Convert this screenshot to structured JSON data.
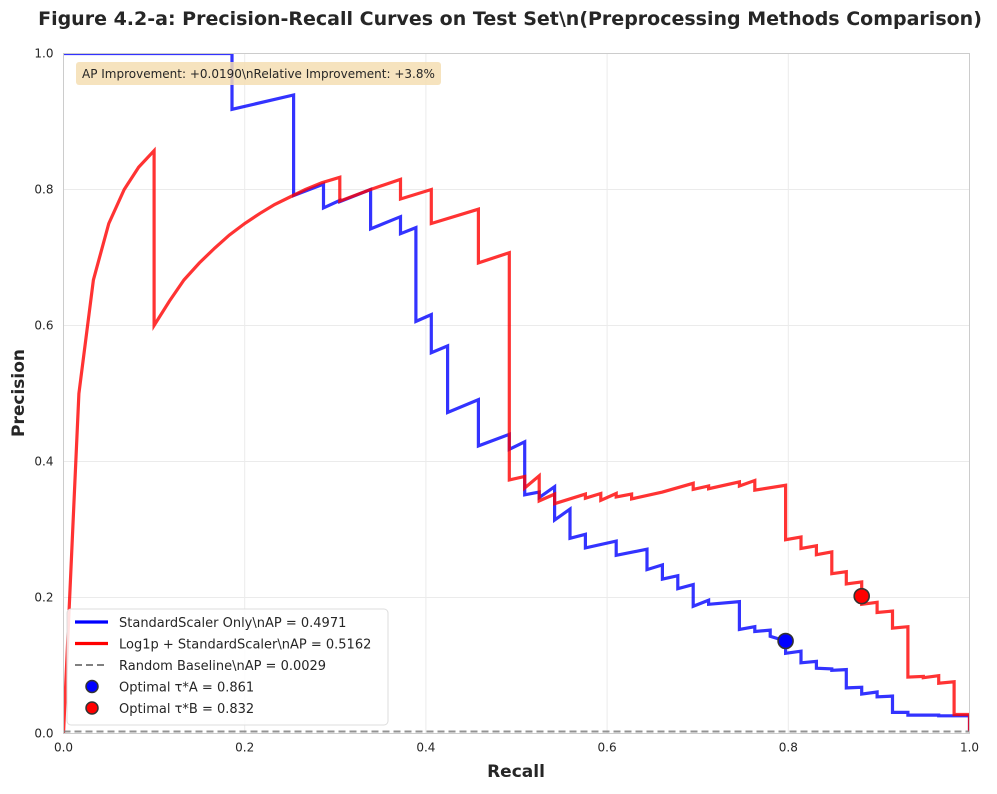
{
  "chart_data": {
    "type": "line",
    "title": "Figure 4.2-a: Precision-Recall Curves on Test Set\\n(Preprocessing Methods Comparison)",
    "xlabel": "Recall",
    "ylabel": "Precision",
    "xlim": [
      0,
      1
    ],
    "ylim": [
      0,
      1
    ],
    "xticks": [
      0.0,
      0.2,
      0.4,
      0.6,
      0.8,
      1.0
    ],
    "yticks": [
      0.0,
      0.2,
      0.4,
      0.6,
      0.8,
      1.0
    ],
    "xtick_labels": [
      "0.0",
      "0.2",
      "0.4",
      "0.6",
      "0.8",
      "1.0"
    ],
    "ytick_labels": [
      "0.0",
      "0.2",
      "0.4",
      "0.6",
      "0.8",
      "1.0"
    ],
    "grid": true,
    "legend_position": "bottom-left",
    "annotation": "AP Improvement: +0.0190\\nRelative Improvement: +3.8%",
    "series": [
      {
        "name": "StandardScaler Only\\nAP = 0.4971",
        "color": "#0000ff",
        "style": "solid",
        "points": [
          [
            0.0,
            1.0
          ],
          [
            0.186,
            1.0
          ],
          [
            0.186,
            0.918
          ],
          [
            0.254,
            0.939
          ],
          [
            0.254,
            0.791
          ],
          [
            0.287,
            0.808
          ],
          [
            0.287,
            0.773
          ],
          [
            0.305,
            0.784
          ],
          [
            0.305,
            0.782
          ],
          [
            0.339,
            0.8
          ],
          [
            0.339,
            0.742
          ],
          [
            0.372,
            0.76
          ],
          [
            0.372,
            0.735
          ],
          [
            0.389,
            0.744
          ],
          [
            0.389,
            0.606
          ],
          [
            0.406,
            0.616
          ],
          [
            0.406,
            0.56
          ],
          [
            0.424,
            0.57
          ],
          [
            0.424,
            0.472
          ],
          [
            0.458,
            0.491
          ],
          [
            0.458,
            0.423
          ],
          [
            0.492,
            0.44
          ],
          [
            0.492,
            0.418
          ],
          [
            0.509,
            0.429
          ],
          [
            0.509,
            0.351
          ],
          [
            0.525,
            0.355
          ],
          [
            0.525,
            0.347
          ],
          [
            0.542,
            0.363
          ],
          [
            0.542,
            0.314
          ],
          [
            0.559,
            0.33
          ],
          [
            0.559,
            0.287
          ],
          [
            0.576,
            0.293
          ],
          [
            0.576,
            0.273
          ],
          [
            0.61,
            0.283
          ],
          [
            0.61,
            0.262
          ],
          [
            0.644,
            0.271
          ],
          [
            0.644,
            0.241
          ],
          [
            0.661,
            0.248
          ],
          [
            0.661,
            0.227
          ],
          [
            0.678,
            0.232
          ],
          [
            0.678,
            0.213
          ],
          [
            0.695,
            0.219
          ],
          [
            0.695,
            0.187
          ],
          [
            0.712,
            0.196
          ],
          [
            0.712,
            0.19
          ],
          [
            0.746,
            0.194
          ],
          [
            0.746,
            0.153
          ],
          [
            0.763,
            0.157
          ],
          [
            0.763,
            0.15
          ],
          [
            0.78,
            0.152
          ],
          [
            0.78,
            0.143
          ],
          [
            0.797,
            0.136
          ],
          [
            0.797,
            0.118
          ],
          [
            0.814,
            0.121
          ],
          [
            0.814,
            0.104
          ],
          [
            0.831,
            0.106
          ],
          [
            0.831,
            0.096
          ],
          [
            0.848,
            0.095
          ],
          [
            0.848,
            0.093
          ],
          [
            0.864,
            0.094
          ],
          [
            0.864,
            0.067
          ],
          [
            0.881,
            0.068
          ],
          [
            0.881,
            0.058
          ],
          [
            0.898,
            0.061
          ],
          [
            0.898,
            0.054
          ],
          [
            0.915,
            0.055
          ],
          [
            0.915,
            0.031
          ],
          [
            0.932,
            0.031
          ],
          [
            0.932,
            0.027
          ],
          [
            0.966,
            0.027
          ],
          [
            0.966,
            0.026
          ],
          [
            1.0,
            0.026
          ],
          [
            1.0,
            0.003
          ]
        ]
      },
      {
        "name": "Log1p + StandardScaler\\nAP = 0.5162",
        "color": "#ff0000",
        "style": "solid",
        "points": [
          [
            0.0,
            0.0
          ],
          [
            0.017,
            0.5
          ],
          [
            0.033,
            0.667
          ],
          [
            0.05,
            0.75
          ],
          [
            0.067,
            0.8
          ],
          [
            0.083,
            0.833
          ],
          [
            0.1,
            0.857
          ],
          [
            0.1,
            0.6
          ],
          [
            0.117,
            0.636
          ],
          [
            0.133,
            0.667
          ],
          [
            0.15,
            0.692
          ],
          [
            0.167,
            0.714
          ],
          [
            0.183,
            0.733
          ],
          [
            0.2,
            0.75
          ],
          [
            0.217,
            0.765
          ],
          [
            0.233,
            0.778
          ],
          [
            0.25,
            0.789
          ],
          [
            0.267,
            0.8
          ],
          [
            0.285,
            0.81
          ],
          [
            0.305,
            0.818
          ],
          [
            0.305,
            0.783
          ],
          [
            0.339,
            0.8
          ],
          [
            0.372,
            0.815
          ],
          [
            0.372,
            0.786
          ],
          [
            0.406,
            0.8
          ],
          [
            0.406,
            0.75
          ],
          [
            0.458,
            0.771
          ],
          [
            0.458,
            0.692
          ],
          [
            0.492,
            0.707
          ],
          [
            0.492,
            0.373
          ],
          [
            0.509,
            0.378
          ],
          [
            0.509,
            0.361
          ],
          [
            0.525,
            0.379
          ],
          [
            0.525,
            0.342
          ],
          [
            0.542,
            0.352
          ],
          [
            0.542,
            0.338
          ],
          [
            0.576,
            0.352
          ],
          [
            0.576,
            0.346
          ],
          [
            0.593,
            0.353
          ],
          [
            0.593,
            0.343
          ],
          [
            0.61,
            0.353
          ],
          [
            0.61,
            0.348
          ],
          [
            0.627,
            0.352
          ],
          [
            0.627,
            0.345
          ],
          [
            0.661,
            0.355
          ],
          [
            0.695,
            0.368
          ],
          [
            0.695,
            0.359
          ],
          [
            0.712,
            0.364
          ],
          [
            0.712,
            0.36
          ],
          [
            0.746,
            0.37
          ],
          [
            0.746,
            0.364
          ],
          [
            0.763,
            0.372
          ],
          [
            0.763,
            0.358
          ],
          [
            0.797,
            0.365
          ],
          [
            0.797,
            0.285
          ],
          [
            0.814,
            0.289
          ],
          [
            0.814,
            0.272
          ],
          [
            0.831,
            0.276
          ],
          [
            0.831,
            0.263
          ],
          [
            0.848,
            0.267
          ],
          [
            0.848,
            0.235
          ],
          [
            0.864,
            0.238
          ],
          [
            0.864,
            0.22
          ],
          [
            0.881,
            0.223
          ],
          [
            0.881,
            0.202
          ],
          [
            0.881,
            0.19
          ],
          [
            0.898,
            0.193
          ],
          [
            0.898,
            0.178
          ],
          [
            0.915,
            0.18
          ],
          [
            0.915,
            0.155
          ],
          [
            0.932,
            0.157
          ],
          [
            0.932,
            0.083
          ],
          [
            0.949,
            0.084
          ],
          [
            0.949,
            0.082
          ],
          [
            0.966,
            0.085
          ],
          [
            0.966,
            0.074
          ],
          [
            0.983,
            0.076
          ],
          [
            0.983,
            0.028
          ],
          [
            1.0,
            0.028
          ],
          [
            1.0,
            0.003
          ]
        ]
      },
      {
        "name": "Random Baseline\\nAP = 0.0029",
        "color": "#808080",
        "style": "dashed",
        "points": [
          [
            0.0,
            0.0029
          ],
          [
            1.0,
            0.0029
          ]
        ]
      }
    ],
    "optimal_points": [
      {
        "name": "Optimal τ*A = 0.861",
        "x": 0.797,
        "y": 0.136,
        "color": "#0000ff"
      },
      {
        "name": "Optimal τ*B = 0.832",
        "x": 0.881,
        "y": 0.202,
        "color": "#ff0000"
      }
    ]
  }
}
